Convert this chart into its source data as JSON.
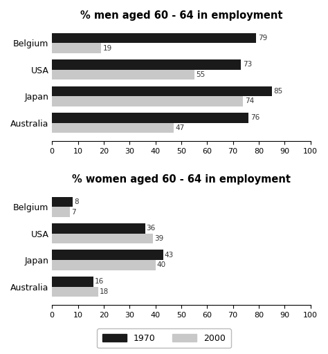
{
  "men_title": "% men aged 60 - 64 in employment",
  "women_title": "% women aged 60 - 64 in employment",
  "categories": [
    "Australia",
    "Japan",
    "USA",
    "Belgium"
  ],
  "men_1970": [
    76,
    85,
    73,
    79
  ],
  "men_2000": [
    47,
    74,
    55,
    19
  ],
  "women_1970": [
    16,
    43,
    36,
    8
  ],
  "women_2000": [
    18,
    40,
    39,
    7
  ],
  "color_1970": "#1a1a1a",
  "color_2000": "#c8c8c8",
  "xlim": [
    0,
    100
  ],
  "xticks": [
    0,
    10,
    20,
    30,
    40,
    50,
    60,
    70,
    80,
    90,
    100
  ],
  "bar_height": 0.38,
  "title_fontsize": 10.5,
  "label_fontsize": 9,
  "tick_fontsize": 8,
  "value_fontsize": 7.5,
  "legend_labels": [
    "1970",
    "2000"
  ],
  "bg_color": "#ffffff"
}
